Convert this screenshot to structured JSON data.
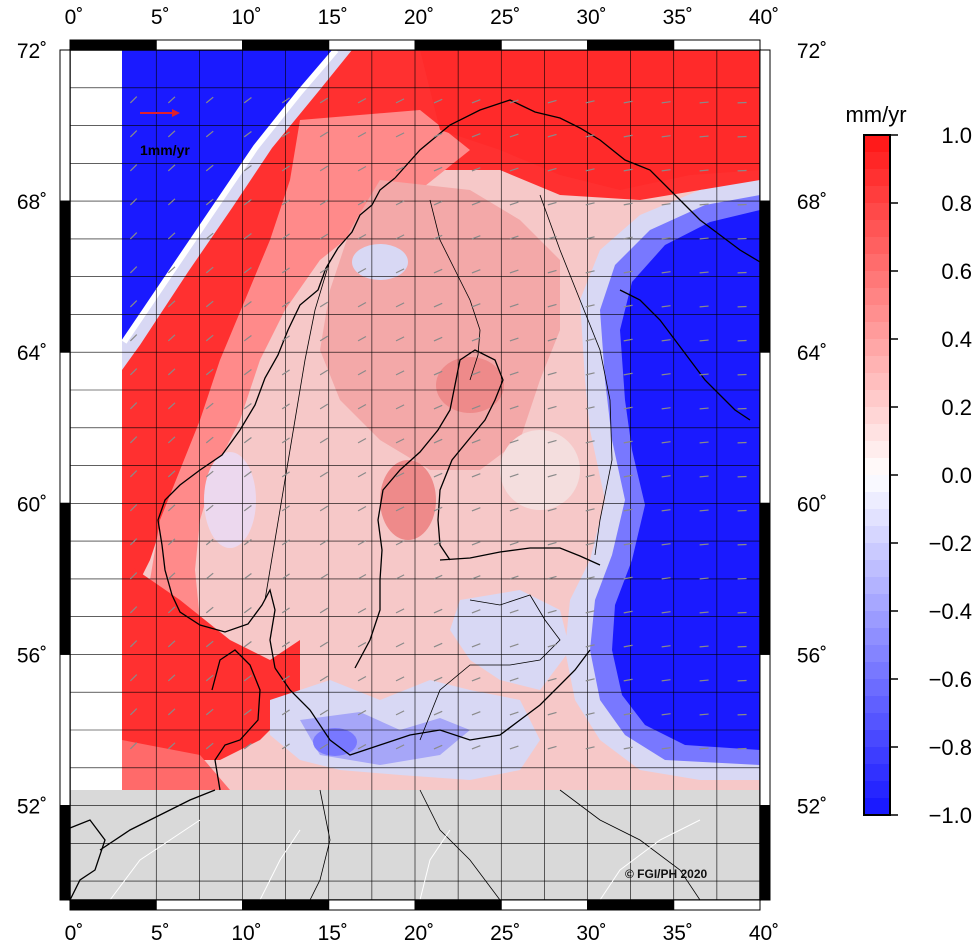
{
  "map": {
    "lon_ticks": [
      "0˚",
      "5˚",
      "10˚",
      "15˚",
      "20˚",
      "25˚",
      "30˚",
      "35˚",
      "40˚"
    ],
    "lat_ticks": [
      "72˚",
      "68˚",
      "64˚",
      "60˚",
      "56˚",
      "52˚"
    ],
    "extent": {
      "lon_min": 0,
      "lon_max": 40,
      "lat_min": 49.5,
      "lat_max": 72
    },
    "data_extent": {
      "lon_min": 3,
      "lon_max": 40,
      "lat_min": 53,
      "lat_max": 72
    },
    "vector_legend_label": "1mm/yr",
    "vector_legend_color": "#e0202c",
    "vector_color": "#8a8a8a",
    "land_no_data_color": "#d9d9d9",
    "credit": "© FGI/PH 2020",
    "regions": [
      {
        "name": "norwegian-sea-negative",
        "value": -1.0
      },
      {
        "name": "norwegian-coast-positive",
        "value": 1.0
      },
      {
        "name": "barents-sea-positive",
        "value": 1.0
      },
      {
        "name": "russia-negative",
        "value": -1.0
      },
      {
        "name": "scandinavia-mixed",
        "value": 0.3
      },
      {
        "name": "baltic-south-negative",
        "value": -0.4
      }
    ]
  },
  "colorbar": {
    "unit": "mm/yr",
    "tick_labels": [
      "1.0",
      "0.8",
      "0.6",
      "0.4",
      "0.2",
      "0.0",
      "−0.2",
      "−0.4",
      "−0.6",
      "−0.8",
      "−1.0"
    ],
    "range": [
      -1.0,
      1.0
    ],
    "colors": [
      "#1a1aff",
      "#4a4aff",
      "#7878ff",
      "#a6a6f8",
      "#d8d8f4",
      "#ffffff",
      "#f4d8d8",
      "#f8a6a6",
      "#ff7878",
      "#ff4a4a",
      "#ff1a1a"
    ]
  }
}
